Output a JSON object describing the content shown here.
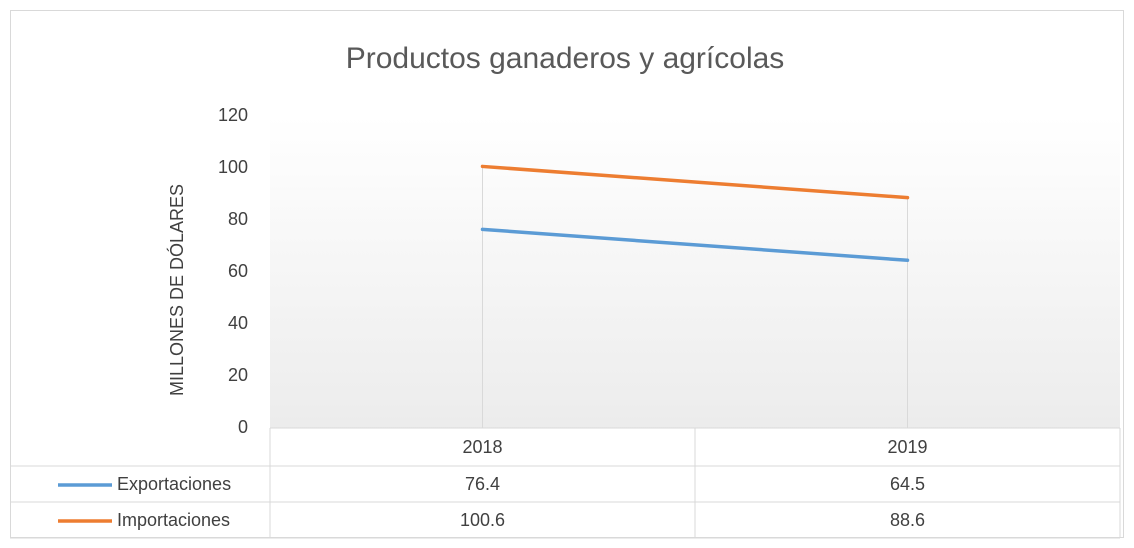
{
  "chart_data": {
    "type": "line",
    "title": "Productos ganaderos y agrícolas",
    "y_label": "MILLONES DE DÓLARES",
    "categories": [
      "2018",
      "2019"
    ],
    "series": [
      {
        "name": "Exportaciones",
        "color": "#5b9bd5",
        "values": [
          76.4,
          64.5
        ]
      },
      {
        "name": "Importaciones",
        "color": "#ed7d31",
        "values": [
          100.6,
          88.6
        ]
      }
    ],
    "ylim": [
      0,
      120
    ],
    "yticks": [
      0,
      20,
      40,
      60,
      80,
      100,
      120
    ]
  }
}
